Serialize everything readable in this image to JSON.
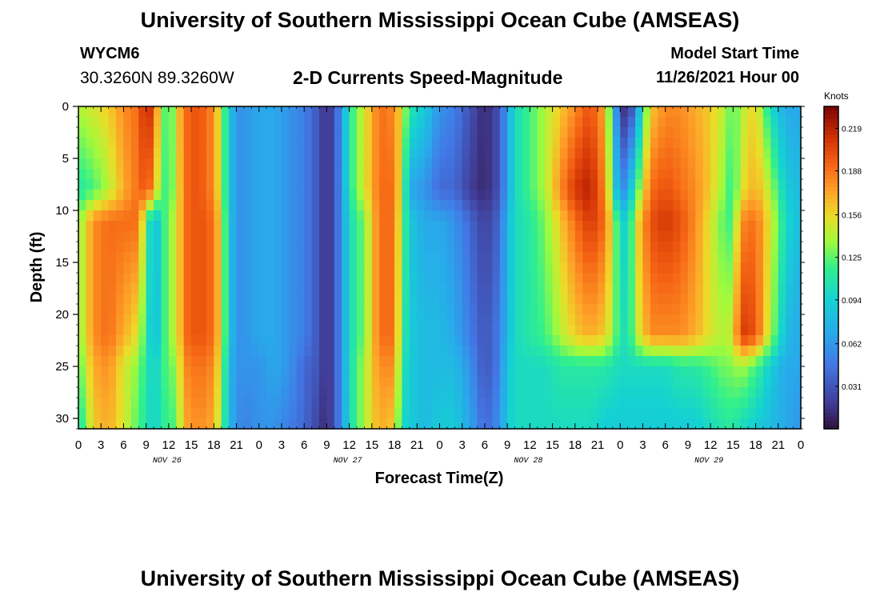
{
  "header": {
    "title": "University of Southern Mississippi Ocean Cube (AMSEAS)",
    "station_id": "WYCM6",
    "station_coords": "30.3260N  89.3260W",
    "chart_title": "2-D Currents Speed-Magnitude",
    "model_start_label": "Model Start Time",
    "model_start_value": "11/26/2021 Hour 00"
  },
  "footer": {
    "title": "University of Southern Mississippi Ocean Cube (AMSEAS)"
  },
  "chart_data": {
    "type": "heatmap",
    "title": "2-D Currents Speed-Magnitude",
    "xlabel": "Forecast Time(Z)",
    "ylabel": "Depth (ft)",
    "x_unit": "hours since 11/26/2021 00Z",
    "x_range": [
      0,
      96
    ],
    "y_range": [
      0,
      31
    ],
    "x_tick_labels": [
      "0",
      "3",
      "6",
      "9",
      "12",
      "15",
      "18",
      "21",
      "0",
      "3",
      "6",
      "9",
      "12",
      "15",
      "18",
      "21",
      "0",
      "3",
      "6",
      "9",
      "12",
      "15",
      "18",
      "21",
      "0",
      "3",
      "6",
      "9",
      "12",
      "15",
      "18",
      "21",
      "0"
    ],
    "y_tick_labels": [
      "0",
      "5",
      "10",
      "15",
      "20",
      "25",
      "30"
    ],
    "y_tick_values": [
      0,
      5,
      10,
      15,
      20,
      25,
      30
    ],
    "date_labels": [
      {
        "text": "NOV 26",
        "hour": 12
      },
      {
        "text": "NOV 27",
        "hour": 36
      },
      {
        "text": "NOV 28",
        "hour": 60
      },
      {
        "text": "NOV 29",
        "hour": 84
      }
    ],
    "colorbar": {
      "unit": "Knots",
      "min": 0.0,
      "max": 0.235,
      "ticks": [
        0.219,
        0.188,
        0.156,
        0.125,
        0.094,
        0.062,
        0.031
      ]
    },
    "depth_levels_ft": [
      0,
      8,
      11,
      22,
      25,
      31
    ],
    "time_hours": [
      0,
      2,
      4,
      6,
      8,
      9,
      10,
      11,
      12,
      13,
      14,
      16,
      18,
      19,
      20,
      21,
      22,
      24,
      26,
      28,
      30,
      32,
      33,
      34,
      35,
      36,
      38,
      40,
      42,
      43,
      44,
      46,
      48,
      50,
      51,
      52,
      54,
      56,
      57,
      58,
      60,
      62,
      64,
      66,
      68,
      70,
      72,
      73,
      74,
      76,
      78,
      80,
      82,
      84,
      86,
      87,
      88,
      90,
      92,
      94,
      96
    ],
    "speed_knots": [
      [
        0.14,
        0.11,
        0.13,
        0.13,
        0.12,
        0.1
      ],
      [
        0.15,
        0.12,
        0.18,
        0.18,
        0.17,
        0.16
      ],
      [
        0.16,
        0.14,
        0.19,
        0.19,
        0.18,
        0.17
      ],
      [
        0.18,
        0.17,
        0.19,
        0.17,
        0.15,
        0.15
      ],
      [
        0.19,
        0.19,
        0.19,
        0.15,
        0.13,
        0.12
      ],
      [
        0.22,
        0.2,
        0.12,
        0.11,
        0.11,
        0.11
      ],
      [
        0.2,
        0.18,
        0.08,
        0.08,
        0.09,
        0.09
      ],
      [
        0.14,
        0.12,
        0.1,
        0.1,
        0.11,
        0.11
      ],
      [
        0.11,
        0.12,
        0.14,
        0.14,
        0.13,
        0.12
      ],
      [
        0.15,
        0.14,
        0.14,
        0.14,
        0.13,
        0.12
      ],
      [
        0.19,
        0.19,
        0.19,
        0.19,
        0.18,
        0.17
      ],
      [
        0.2,
        0.2,
        0.2,
        0.2,
        0.19,
        0.18
      ],
      [
        0.18,
        0.18,
        0.19,
        0.19,
        0.18,
        0.17
      ],
      [
        0.14,
        0.14,
        0.15,
        0.15,
        0.14,
        0.13
      ],
      [
        0.09,
        0.09,
        0.09,
        0.09,
        0.08,
        0.08
      ],
      [
        0.06,
        0.06,
        0.06,
        0.06,
        0.06,
        0.06
      ],
      [
        0.06,
        0.06,
        0.06,
        0.06,
        0.06,
        0.05
      ],
      [
        0.07,
        0.07,
        0.07,
        0.07,
        0.06,
        0.06
      ],
      [
        0.07,
        0.07,
        0.07,
        0.07,
        0.07,
        0.06
      ],
      [
        0.06,
        0.06,
        0.06,
        0.06,
        0.06,
        0.05
      ],
      [
        0.05,
        0.05,
        0.05,
        0.05,
        0.04,
        0.04
      ],
      [
        0.03,
        0.03,
        0.03,
        0.03,
        0.03,
        0.02
      ],
      [
        0.01,
        0.01,
        0.01,
        0.01,
        0.01,
        0.01
      ],
      [
        0.03,
        0.03,
        0.03,
        0.03,
        0.03,
        0.03
      ],
      [
        0.06,
        0.06,
        0.06,
        0.06,
        0.06,
        0.06
      ],
      [
        0.11,
        0.11,
        0.1,
        0.1,
        0.1,
        0.1
      ],
      [
        0.15,
        0.15,
        0.13,
        0.13,
        0.14,
        0.14
      ],
      [
        0.19,
        0.19,
        0.19,
        0.19,
        0.18,
        0.17
      ],
      [
        0.18,
        0.19,
        0.19,
        0.19,
        0.18,
        0.16
      ],
      [
        0.15,
        0.14,
        0.13,
        0.12,
        0.11,
        0.1
      ],
      [
        0.11,
        0.07,
        0.09,
        0.09,
        0.09,
        0.09
      ],
      [
        0.09,
        0.06,
        0.07,
        0.08,
        0.08,
        0.08
      ],
      [
        0.06,
        0.04,
        0.07,
        0.08,
        0.08,
        0.09
      ],
      [
        0.05,
        0.04,
        0.06,
        0.07,
        0.08,
        0.09
      ],
      [
        0.04,
        0.03,
        0.05,
        0.06,
        0.07,
        0.08
      ],
      [
        0.03,
        0.02,
        0.04,
        0.05,
        0.06,
        0.07
      ],
      [
        0.01,
        0.01,
        0.02,
        0.03,
        0.03,
        0.04
      ],
      [
        0.03,
        0.03,
        0.04,
        0.05,
        0.05,
        0.06
      ],
      [
        0.07,
        0.07,
        0.08,
        0.08,
        0.09,
        0.09
      ],
      [
        0.1,
        0.1,
        0.1,
        0.1,
        0.1,
        0.1
      ],
      [
        0.12,
        0.12,
        0.11,
        0.11,
        0.1,
        0.1
      ],
      [
        0.14,
        0.14,
        0.13,
        0.12,
        0.1,
        0.1
      ],
      [
        0.16,
        0.18,
        0.16,
        0.14,
        0.11,
        0.1
      ],
      [
        0.18,
        0.21,
        0.19,
        0.16,
        0.11,
        0.1
      ],
      [
        0.2,
        0.22,
        0.21,
        0.17,
        0.11,
        0.1
      ],
      [
        0.17,
        0.18,
        0.19,
        0.16,
        0.11,
        0.09
      ],
      [
        0.02,
        0.05,
        0.1,
        0.11,
        0.1,
        0.09
      ],
      [
        0.01,
        0.07,
        0.09,
        0.1,
        0.1,
        0.09
      ],
      [
        0.05,
        0.11,
        0.15,
        0.14,
        0.1,
        0.09
      ],
      [
        0.16,
        0.19,
        0.2,
        0.18,
        0.1,
        0.09
      ],
      [
        0.18,
        0.2,
        0.21,
        0.18,
        0.1,
        0.09
      ],
      [
        0.18,
        0.19,
        0.2,
        0.18,
        0.11,
        0.09
      ],
      [
        0.17,
        0.18,
        0.18,
        0.17,
        0.11,
        0.09
      ],
      [
        0.16,
        0.16,
        0.15,
        0.15,
        0.12,
        0.1
      ],
      [
        0.14,
        0.13,
        0.12,
        0.14,
        0.13,
        0.11
      ],
      [
        0.12,
        0.11,
        0.12,
        0.15,
        0.13,
        0.11
      ],
      [
        0.14,
        0.15,
        0.18,
        0.21,
        0.14,
        0.1
      ],
      [
        0.16,
        0.17,
        0.19,
        0.2,
        0.12,
        0.09
      ],
      [
        0.1,
        0.14,
        0.15,
        0.14,
        0.09,
        0.08
      ],
      [
        0.07,
        0.09,
        0.1,
        0.08,
        0.07,
        0.07
      ],
      [
        0.07,
        0.08,
        0.08,
        0.07,
        0.07,
        0.06
      ]
    ]
  }
}
